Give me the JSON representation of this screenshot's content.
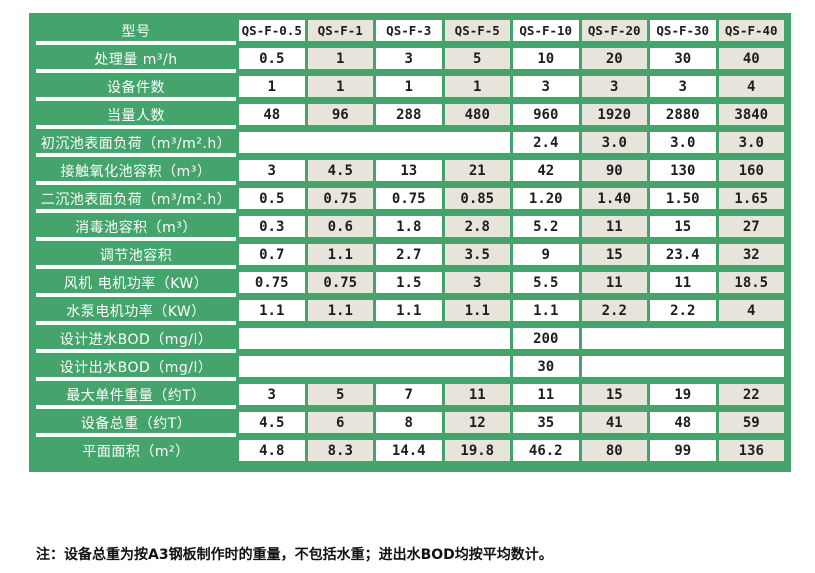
{
  "colors": {
    "table_green": "#45a46c",
    "cell_white": "#ffffff",
    "cell_alt_gray": "#e6e4db",
    "label_text": "#ffffff",
    "value_text": "#1d1d1d"
  },
  "table": {
    "header": {
      "label": "型号",
      "models": [
        "QS-F-0.5",
        "QS-F-1",
        "QS-F-3",
        "QS-F-5",
        "QS-F-10",
        "QS-F-20",
        "QS-F-30",
        "QS-F-40"
      ]
    },
    "rows": [
      {
        "label": "处理量 m³/h",
        "cells": [
          "0.5",
          "1",
          "3",
          "5",
          "10",
          "20",
          "30",
          "40"
        ]
      },
      {
        "label": "设备件数",
        "cells": [
          "1",
          "1",
          "1",
          "1",
          "3",
          "3",
          "3",
          "4"
        ]
      },
      {
        "label": "当量人数",
        "cells": [
          "48",
          "96",
          "288",
          "480",
          "960",
          "1920",
          "2880",
          "3840"
        ]
      },
      {
        "label": "初沉池表面负荷（m³/m².h）",
        "cells": [
          {
            "span": 4,
            "text": ""
          },
          "2.4",
          "3.0",
          "3.0",
          "3.0"
        ]
      },
      {
        "label": "接触氧化池容积（m³）",
        "cells": [
          "3",
          "4.5",
          "13",
          "21",
          "42",
          "90",
          "130",
          "160"
        ]
      },
      {
        "label": "二沉池表面负荷（m³/m².h）",
        "cells": [
          "0.5",
          "0.75",
          "0.75",
          "0.85",
          "1.20",
          "1.40",
          "1.50",
          "1.65"
        ]
      },
      {
        "label": "消毒池容积（m³）",
        "cells": [
          "0.3",
          "0.6",
          "1.8",
          "2.8",
          "5.2",
          "11",
          "15",
          "27"
        ]
      },
      {
        "label": "调节池容积",
        "cells": [
          "0.7",
          "1.1",
          "2.7",
          "3.5",
          "9",
          "15",
          "23.4",
          "32"
        ]
      },
      {
        "label": "风机 电机功率（KW）",
        "cells": [
          "0.75",
          "0.75",
          "1.5",
          "3",
          "5.5",
          "11",
          "11",
          "18.5"
        ]
      },
      {
        "label": "水泵电机功率（KW）",
        "cells": [
          "1.1",
          "1.1",
          "1.1",
          "1.1",
          "1.1",
          "2.2",
          "2.2",
          "4"
        ]
      },
      {
        "label": "设计进水BOD（mg/l）",
        "cells": [
          {
            "span": 4,
            "text": ""
          },
          "200",
          {
            "span": 3,
            "text": ""
          }
        ]
      },
      {
        "label": "设计出水BOD（mg/l）",
        "cells": [
          {
            "span": 4,
            "text": ""
          },
          "30",
          {
            "span": 3,
            "text": ""
          }
        ]
      },
      {
        "label": "最大单件重量（约T）",
        "cells": [
          "3",
          "5",
          "7",
          "11",
          "11",
          "15",
          "19",
          "22"
        ]
      },
      {
        "label": "设备总重（约T）",
        "cells": [
          "4.5",
          "6",
          "8",
          "12",
          "35",
          "41",
          "48",
          "59"
        ]
      },
      {
        "label": "平面面积（m²）",
        "cells": [
          "4.8",
          "8.3",
          "14.4",
          "19.8",
          "46.2",
          "80",
          "99",
          "136"
        ]
      }
    ]
  },
  "note": "注：设备总重为按A3钢板制作时的重量，不包括水重；进出水BOD均按平均数计。"
}
